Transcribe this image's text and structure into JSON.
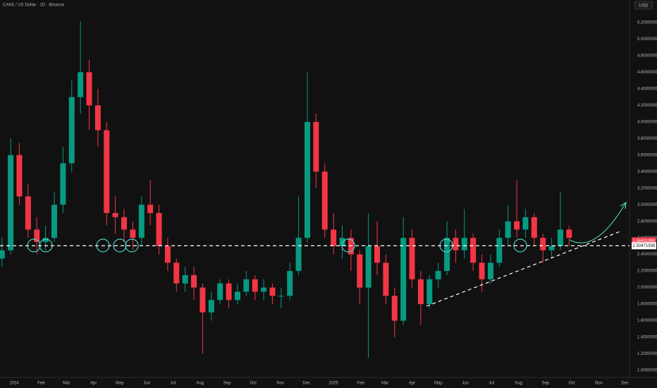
{
  "header": {
    "symbol": "CAKE / US Dollar · 1D · Binance",
    "currency": "USD"
  },
  "chart_data": {
    "type": "candlestick",
    "up_color": "#089981",
    "down_color": "#f23645",
    "x": [
      -14,
      -4,
      6,
      16,
      26,
      36,
      46,
      56,
      66,
      76,
      86,
      96,
      106,
      116,
      126,
      136,
      146,
      156,
      166,
      176,
      186,
      196,
      206,
      216,
      226,
      236,
      246,
      256,
      266,
      276,
      286,
      296,
      306,
      316,
      326,
      336,
      346,
      356,
      366,
      376,
      386,
      396,
      406,
      416,
      426,
      436,
      446,
      456,
      466,
      476,
      486,
      496,
      506,
      516,
      526,
      536,
      546,
      556,
      566,
      576,
      586,
      596,
      606,
      616,
      626,
      636
    ],
    "open": [
      2.35,
      2.45,
      3.6,
      3.1,
      2.7,
      2.55,
      2.6,
      3.0,
      3.5,
      4.3,
      4.6,
      4.2,
      3.9,
      2.9,
      2.85,
      2.7,
      2.6,
      3.0,
      2.9,
      2.5,
      2.3,
      2.05,
      2.15,
      2.0,
      1.7,
      1.85,
      2.05,
      1.85,
      1.95,
      2.1,
      1.95,
      2.0,
      1.9,
      1.9,
      2.2,
      2.6,
      4.0,
      3.4,
      2.7,
      2.5,
      2.6,
      2.4,
      2.0,
      2.5,
      2.3,
      1.9,
      1.6,
      2.6,
      2.1,
      1.8,
      2.1,
      2.2,
      2.6,
      2.45,
      2.6,
      2.3,
      2.1,
      2.3,
      2.6,
      2.8,
      2.7,
      2.85,
      2.6,
      2.45,
      2.5,
      2.7
    ],
    "high": [
      2.6,
      3.8,
      3.75,
      3.25,
      2.85,
      2.75,
      3.15,
      3.7,
      4.5,
      5.22,
      4.75,
      4.4,
      4.0,
      3.1,
      2.95,
      2.8,
      3.1,
      3.3,
      3.0,
      2.6,
      2.35,
      2.25,
      2.25,
      2.05,
      1.95,
      2.1,
      2.1,
      2.05,
      2.2,
      2.15,
      2.1,
      2.05,
      2.0,
      2.3,
      3.1,
      4.6,
      4.1,
      3.5,
      2.9,
      2.75,
      2.7,
      2.45,
      2.9,
      2.8,
      2.4,
      2.0,
      2.85,
      2.7,
      2.2,
      2.15,
      2.3,
      2.8,
      2.7,
      2.95,
      2.65,
      2.4,
      2.4,
      2.7,
      3.0,
      3.3,
      2.95,
      2.9,
      2.65,
      2.6,
      3.15,
      2.75
    ],
    "low": [
      2.25,
      2.4,
      3.0,
      2.6,
      2.4,
      2.45,
      2.55,
      2.9,
      3.4,
      4.1,
      3.9,
      3.7,
      2.75,
      2.65,
      2.55,
      2.45,
      2.5,
      2.75,
      2.4,
      2.2,
      1.95,
      1.95,
      1.85,
      1.2,
      1.6,
      1.8,
      1.75,
      1.8,
      1.9,
      1.85,
      1.85,
      1.8,
      1.75,
      1.85,
      2.15,
      2.55,
      3.2,
      2.6,
      2.4,
      2.35,
      2.2,
      1.8,
      1.15,
      2.15,
      1.8,
      1.4,
      1.55,
      2.0,
      1.55,
      1.75,
      2.0,
      2.15,
      2.3,
      2.35,
      2.2,
      1.95,
      2.05,
      2.25,
      2.5,
      2.6,
      2.6,
      2.5,
      2.3,
      2.35,
      2.45,
      2.5
    ],
    "close": [
      2.45,
      3.6,
      3.1,
      2.7,
      2.55,
      2.6,
      3.0,
      3.5,
      4.3,
      4.6,
      4.2,
      3.9,
      2.9,
      2.85,
      2.7,
      2.6,
      3.0,
      2.9,
      2.5,
      2.3,
      2.05,
      2.15,
      2.0,
      1.7,
      1.85,
      2.05,
      1.85,
      1.95,
      2.1,
      1.95,
      2.0,
      1.9,
      1.9,
      2.2,
      2.6,
      4.0,
      3.4,
      2.7,
      2.5,
      2.6,
      2.4,
      2.0,
      2.5,
      2.3,
      1.9,
      1.6,
      2.6,
      2.1,
      1.8,
      2.1,
      2.2,
      2.6,
      2.45,
      2.6,
      2.3,
      2.1,
      2.3,
      2.6,
      2.8,
      2.7,
      2.85,
      2.6,
      2.45,
      2.5,
      2.7,
      2.6
    ],
    "xlim": [
      -16.2,
      705.2
    ],
    "xticks": [
      {
        "value": 0,
        "label": "2024"
      },
      {
        "value": 31,
        "label": "Feb"
      },
      {
        "value": 60,
        "label": "Mar"
      },
      {
        "value": 91,
        "label": "Apr"
      },
      {
        "value": 121,
        "label": "May"
      },
      {
        "value": 152,
        "label": "Jun"
      },
      {
        "value": 182,
        "label": "Jul"
      },
      {
        "value": 213,
        "label": "Aug"
      },
      {
        "value": 244,
        "label": "Sep"
      },
      {
        "value": 274,
        "label": "Oct"
      },
      {
        "value": 305,
        "label": "Nov"
      },
      {
        "value": 335,
        "label": "Dec"
      },
      {
        "value": 366,
        "label": "2025"
      },
      {
        "value": 397,
        "label": "Feb"
      },
      {
        "value": 425,
        "label": "Mar"
      },
      {
        "value": 456,
        "label": "Apr"
      },
      {
        "value": 486,
        "label": "May"
      },
      {
        "value": 517,
        "label": "Jun"
      },
      {
        "value": 547,
        "label": "Jul"
      },
      {
        "value": 578,
        "label": "Aug"
      },
      {
        "value": 609,
        "label": "Sep"
      },
      {
        "value": 639,
        "label": "Oct"
      },
      {
        "value": 670,
        "label": "Nov"
      },
      {
        "value": 700,
        "label": "Dec"
      }
    ],
    "ylim": [
      0.915,
      5.472
    ],
    "yticks": [
      {
        "value": 1.0,
        "label": "1.00000000"
      },
      {
        "value": 1.2,
        "label": "1.20000000"
      },
      {
        "value": 1.4,
        "label": "1.40000000"
      },
      {
        "value": 1.6,
        "label": "1.60000000"
      },
      {
        "value": 1.8,
        "label": "1.80000000"
      },
      {
        "value": 2.0,
        "label": "2.00000000"
      },
      {
        "value": 2.2,
        "label": "2.20000000"
      },
      {
        "value": 2.4,
        "label": "2.40000000"
      },
      {
        "value": 2.6,
        "label": "2.60000000"
      },
      {
        "value": 2.8,
        "label": "2.80000000"
      },
      {
        "value": 3.0,
        "label": "3.00000000"
      },
      {
        "value": 3.2,
        "label": "3.20000000"
      },
      {
        "value": 3.4,
        "label": "3.40000000"
      },
      {
        "value": 3.6,
        "label": "3.60000000"
      },
      {
        "value": 3.8,
        "label": "3.80000000"
      },
      {
        "value": 4.0,
        "label": "4.00000000"
      },
      {
        "value": 4.2,
        "label": "4.20000000"
      },
      {
        "value": 4.4,
        "label": "4.40000000"
      },
      {
        "value": 4.6,
        "label": "4.60000000"
      },
      {
        "value": 4.8,
        "label": "4.80000000"
      },
      {
        "value": 5.0,
        "label": "5.00000000"
      },
      {
        "value": 5.2,
        "label": "5.20000000"
      }
    ],
    "current_price": {
      "value": 2.5640196,
      "label": "2.56401960"
    },
    "level": {
      "value": 2.50471938,
      "label": "2.50471938"
    }
  }
}
